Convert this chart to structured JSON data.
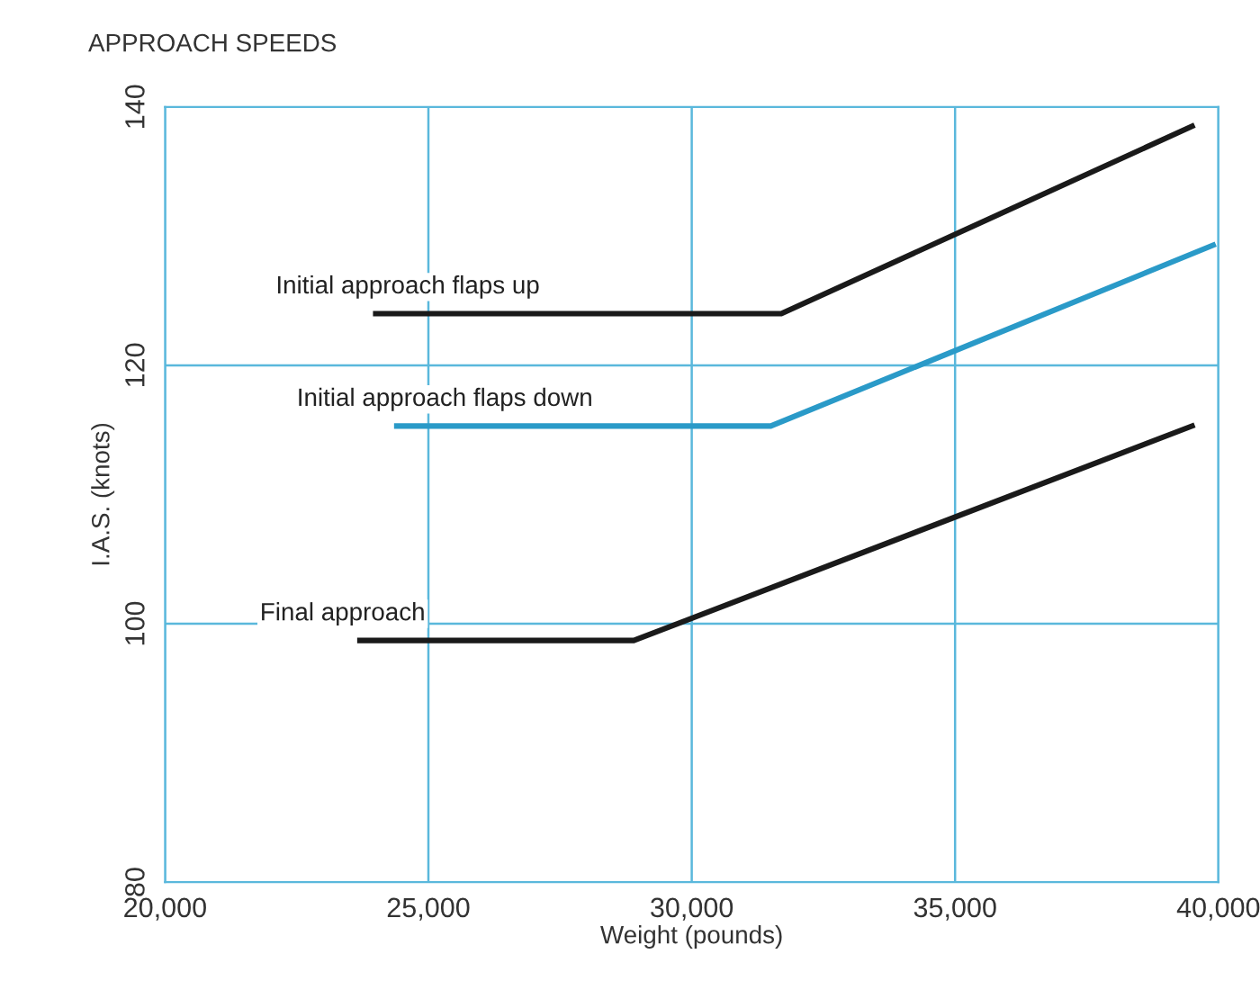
{
  "chart_data": {
    "type": "line",
    "title": "APPROACH SPEEDS",
    "xlabel": "Weight (pounds)",
    "ylabel": "I.A.S. (knots)",
    "series": [
      {
        "name": "Initial approach flaps up",
        "color": "#1a1a1a",
        "x": [
          24000,
          31700,
          39500
        ],
        "values": [
          124,
          124,
          138.5
        ]
      },
      {
        "name": "Initial approach flaps down",
        "color": "#2a9ac8",
        "x": [
          24400,
          31500,
          39900
        ],
        "values": [
          115.3,
          115.3,
          129.3
        ]
      },
      {
        "name": "Final approach",
        "color": "#1a1a1a",
        "x": [
          23700,
          28900,
          39500
        ],
        "values": [
          98.7,
          98.7,
          115.3
        ]
      }
    ],
    "xlim": [
      20000,
      40000
    ],
    "ylim": [
      80,
      140
    ],
    "xticks": [
      {
        "value": 20000,
        "label": "20,000"
      },
      {
        "value": 25000,
        "label": "25,000"
      },
      {
        "value": 30000,
        "label": "30,000"
      },
      {
        "value": 35000,
        "label": "35,000"
      },
      {
        "value": 40000,
        "label": "40,000"
      }
    ],
    "yticks": [
      80,
      100,
      120,
      140
    ],
    "grid": true,
    "marker": "none",
    "line_style": "solid"
  }
}
